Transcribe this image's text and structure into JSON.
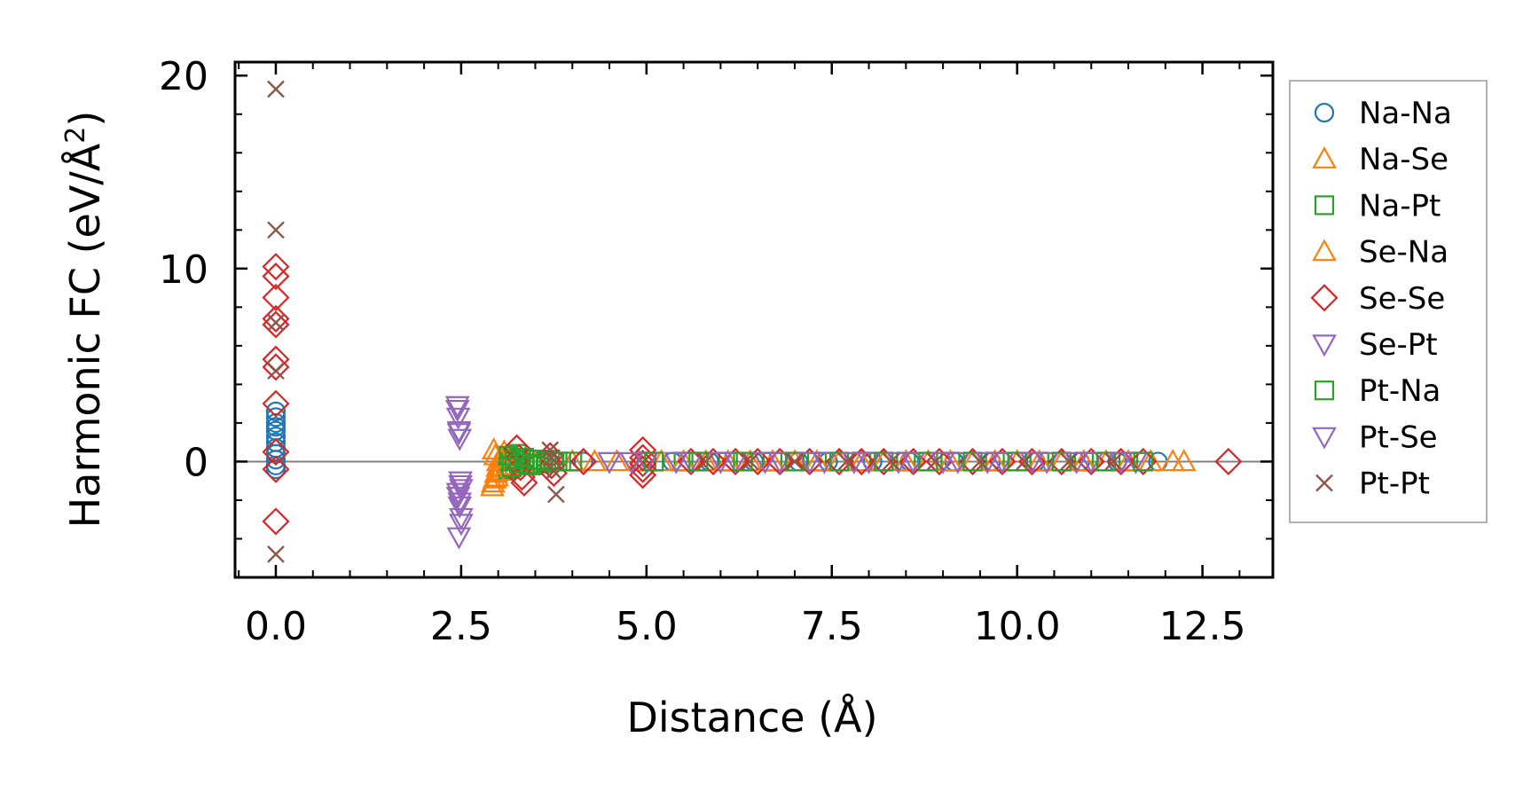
{
  "chart_data": {
    "type": "scatter",
    "xlabel": "Distance (Å)",
    "ylabel_prefix": "Harmonic FC (eV/Å",
    "ylabel_exponent": "2",
    "ylabel_suffix": ")",
    "xlim": [
      -0.55,
      13.45
    ],
    "ylim": [
      -6.0,
      20.7
    ],
    "xticks": [
      0.0,
      2.5,
      5.0,
      7.5,
      10.0,
      12.5
    ],
    "xtick_labels": [
      "0.0",
      "2.5",
      "5.0",
      "7.5",
      "10.0",
      "12.5"
    ],
    "xminor_step": 0.5,
    "yticks": [
      0,
      10,
      20
    ],
    "ytick_labels": [
      "0",
      "10",
      "20"
    ],
    "yminor_step": 2,
    "zero_line": true,
    "grid": false,
    "legend_position": "outside-right",
    "series": [
      {
        "name": "Na-Na",
        "marker": "circle",
        "color": "#1f77b4",
        "x": [
          0,
          0,
          0,
          0,
          0,
          0,
          0,
          0,
          0,
          0,
          0,
          0,
          4.15,
          5.35,
          5.85,
          6.45,
          7.05,
          7.45,
          8.05,
          8.55,
          9.15,
          9.65,
          10.25,
          10.85,
          11.35,
          11.9
        ],
        "y": [
          2.6,
          2.3,
          2.0,
          1.6,
          1.3,
          1.0,
          0.7,
          0.4,
          0.1,
          -0.2,
          -0.4,
          1.8,
          0,
          0,
          0,
          0,
          0,
          0,
          0,
          0,
          0,
          0,
          0,
          0,
          0,
          0
        ]
      },
      {
        "name": "Na-Se",
        "marker": "triangle-up",
        "color": "#ff7f0e",
        "x": [
          2.93,
          2.95,
          2.97,
          2.99,
          3.0,
          2.96,
          2.94,
          3.02,
          3.05,
          3.5,
          4.0,
          4.6,
          5.2,
          5.8,
          6.4,
          7.0,
          7.6,
          8.2,
          8.8,
          9.4,
          10.0,
          10.6,
          11.2,
          11.8,
          12.25
        ],
        "y": [
          -1.1,
          -0.9,
          -0.6,
          -0.3,
          0.0,
          0.3,
          0.6,
          -0.5,
          0.2,
          0,
          0,
          0,
          0,
          0,
          0,
          0,
          0,
          0,
          0,
          0,
          0,
          0,
          0,
          0,
          0
        ]
      },
      {
        "name": "Na-Pt",
        "marker": "square",
        "color": "#2ca02c",
        "x": [
          3.13,
          3.15,
          3.17,
          3.2,
          3.25,
          3.3,
          3.4,
          3.5,
          3.6,
          3.7,
          3.8,
          4.0,
          5.0,
          5.5,
          6.1,
          6.7,
          7.3,
          7.9,
          8.5,
          9.1,
          9.7,
          10.3,
          10.9,
          11.5
        ],
        "y": [
          -0.4,
          -0.2,
          0.0,
          0.2,
          0.4,
          0.1,
          -0.1,
          0.1,
          -0.1,
          0.1,
          0,
          0,
          0,
          0,
          0,
          0,
          0,
          0,
          0,
          0,
          0,
          0,
          0,
          0
        ]
      },
      {
        "name": "Se-Na",
        "marker": "triangle-up",
        "color": "#ff7f0e",
        "x": [
          2.92,
          2.98,
          3.03,
          3.08,
          3.12,
          4.3,
          4.9,
          5.5,
          6.1,
          6.7,
          7.3,
          7.9,
          8.5,
          9.1,
          9.7,
          10.3,
          10.9,
          11.5,
          12.1
        ],
        "y": [
          -1.3,
          -0.8,
          0.2,
          0.5,
          -0.2,
          0,
          0,
          0,
          0,
          0,
          0,
          0,
          0,
          0,
          0,
          0,
          0,
          0,
          0
        ]
      },
      {
        "name": "Se-Se",
        "marker": "diamond",
        "color": "#d62728",
        "x": [
          0,
          0,
          0,
          0,
          0,
          0,
          0,
          0,
          0,
          0,
          0,
          3.25,
          3.28,
          3.3,
          3.32,
          3.35,
          3.7,
          3.72,
          3.75,
          4.15,
          4.95,
          4.95,
          4.95,
          4.95,
          4.95,
          5.6,
          5.9,
          6.2,
          6.5,
          6.8,
          7.2,
          7.6,
          7.9,
          8.2,
          8.6,
          8.95,
          9.4,
          9.8,
          10.2,
          10.6,
          11.0,
          11.4,
          11.7,
          12.85
        ],
        "y": [
          10.1,
          9.6,
          8.5,
          7.4,
          7.1,
          5.3,
          4.9,
          3.0,
          -3.1,
          0.5,
          -0.4,
          0.7,
          0.2,
          -0.3,
          -0.8,
          -1.1,
          0.3,
          -0.2,
          -0.6,
          0,
          0.6,
          0.2,
          -0.1,
          -0.4,
          -0.7,
          0,
          0,
          0,
          0,
          0,
          0,
          0,
          0,
          0,
          0,
          0,
          0,
          0,
          0,
          0,
          0,
          0,
          0,
          0
        ]
      },
      {
        "name": "Se-Pt",
        "marker": "triangle-down",
        "color": "#9467bd",
        "x": [
          2.45,
          2.46,
          2.47,
          2.48,
          2.49,
          2.5,
          2.46,
          2.48,
          2.5,
          2.47,
          4.5,
          5.0,
          5.6,
          6.2,
          6.8,
          7.4,
          8.0,
          8.6,
          9.2,
          9.8,
          10.4,
          11.0,
          11.6
        ],
        "y": [
          2.9,
          2.3,
          1.6,
          1.2,
          -1.0,
          -1.4,
          -1.8,
          -2.3,
          -2.9,
          -3.9,
          0,
          0,
          0,
          0,
          0,
          0,
          0,
          0,
          0,
          0,
          0,
          0,
          0
        ]
      },
      {
        "name": "Pt-Na",
        "marker": "square",
        "color": "#2ca02c",
        "x": [
          3.14,
          3.18,
          3.22,
          3.28,
          3.35,
          3.45,
          3.55,
          3.65,
          3.75,
          3.85,
          5.1,
          5.7,
          6.3,
          7.0,
          7.6,
          8.2,
          8.8,
          9.4,
          10.0,
          10.6,
          11.2,
          11.7
        ],
        "y": [
          0.3,
          -0.3,
          0.1,
          -0.1,
          0.2,
          -0.2,
          0.1,
          0,
          0,
          0,
          0,
          0,
          0,
          0,
          0,
          0,
          0,
          0,
          0,
          0,
          0,
          0
        ]
      },
      {
        "name": "Pt-Se",
        "marker": "triangle-down",
        "color": "#9467bd",
        "x": [
          2.45,
          2.47,
          2.49,
          2.46,
          2.48,
          2.5,
          4.8,
          5.4,
          6.0,
          6.6,
          7.2,
          7.8,
          8.4,
          9.0,
          9.6,
          10.2,
          10.8,
          11.4
        ],
        "y": [
          2.7,
          1.5,
          -1.2,
          -1.6,
          -2.1,
          -3.2,
          0,
          0,
          0,
          0,
          0,
          0,
          0,
          0,
          0,
          0,
          0,
          0
        ]
      },
      {
        "name": "Pt-Pt",
        "marker": "x",
        "color": "#8c564b",
        "x": [
          0,
          0,
          0,
          0,
          0,
          3.7,
          3.72,
          3.75,
          3.78,
          5.8,
          6.4,
          7.0,
          7.7,
          8.3,
          8.9,
          9.5,
          10.1,
          10.7,
          11.3
        ],
        "y": [
          19.3,
          12.0,
          7.2,
          4.7,
          -4.8,
          0.6,
          0.2,
          -0.5,
          -1.7,
          0,
          0,
          0,
          0,
          0,
          0,
          0,
          0,
          0,
          0
        ]
      }
    ]
  }
}
